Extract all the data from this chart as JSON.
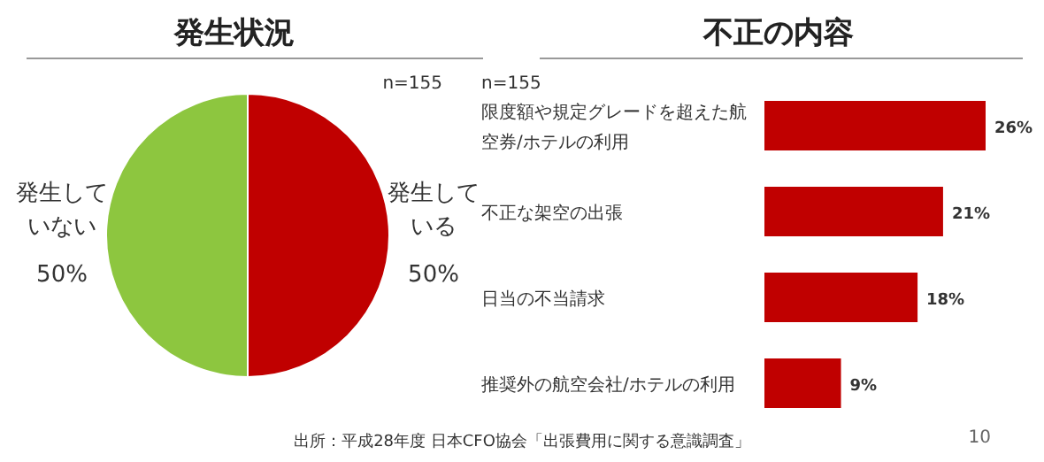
{
  "chart_data": [
    {
      "type": "pie",
      "title": "発生状況",
      "annotations": [
        "n=155"
      ],
      "categories": [
        "発生している",
        "発生していない"
      ],
      "values": [
        50,
        50
      ],
      "value_labels": [
        "50%",
        "50%"
      ],
      "colors": [
        "#c00000",
        "#8dc63f"
      ]
    },
    {
      "type": "bar",
      "title": "不正の内容",
      "orientation": "horizontal",
      "annotations": [
        "n=155",
        "出所：平成28年度 日本CFO協会「出張費用に関する意識調査」",
        "10"
      ],
      "categories": [
        "限度額や規定グレードを超えた航空券/ホテルの利用",
        "不正な架空の出張",
        "日当の不当請求",
        "推奨外の航空会社/ホテルの利用"
      ],
      "values": [
        26,
        21,
        18,
        9
      ],
      "value_labels": [
        "26%",
        "21%",
        "18%",
        "9%"
      ],
      "color": "#c00000"
    }
  ]
}
